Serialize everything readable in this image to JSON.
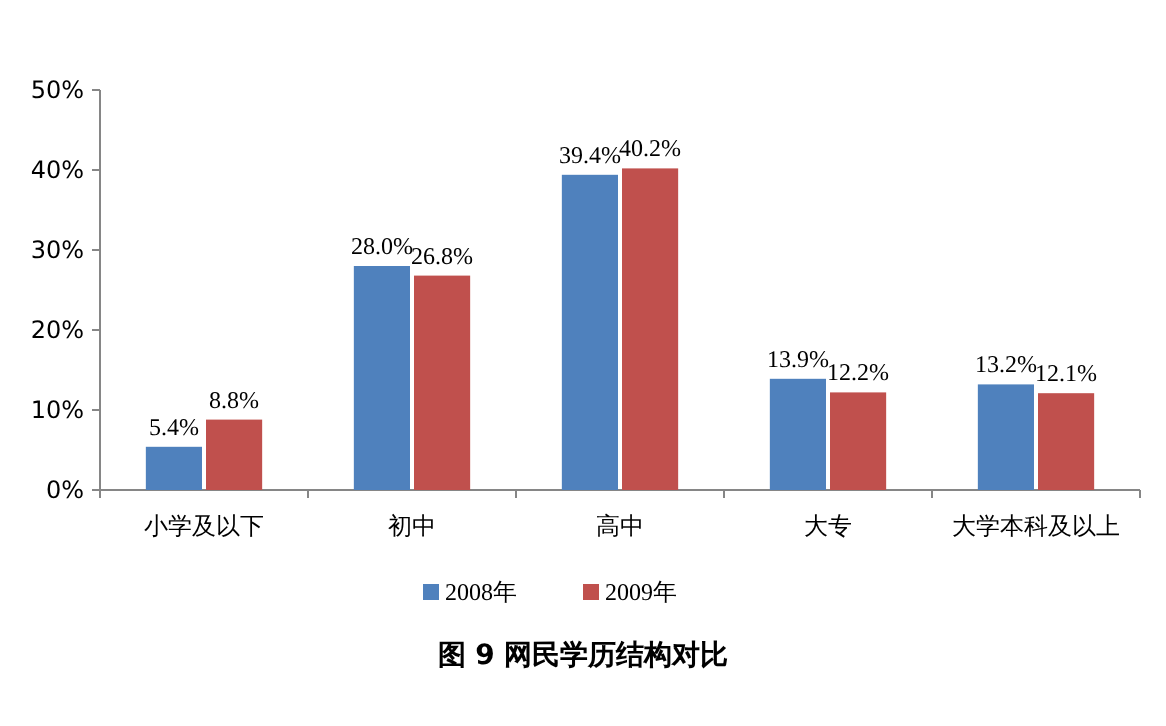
{
  "chart_data": {
    "type": "bar",
    "title": "图 9   网民学历结构对比",
    "categories": [
      "小学及以下",
      "初中",
      "高中",
      "大专",
      "大学本科及以上"
    ],
    "series": [
      {
        "name": "2008年",
        "color": "#4f81bd",
        "values": [
          5.4,
          28.0,
          39.4,
          13.9,
          13.2
        ],
        "value_labels": [
          "5.4%",
          "28.0%",
          "39.4%",
          "13.9%",
          "13.2%"
        ]
      },
      {
        "name": "2009年",
        "color": "#c0504d",
        "values": [
          8.8,
          26.8,
          40.2,
          12.2,
          12.1
        ],
        "value_labels": [
          "8.8%",
          "26.8%",
          "40.2%",
          "12.2%",
          "12.1%"
        ]
      }
    ],
    "ylim": [
      0,
      50
    ],
    "yticks": [
      {
        "value": 0,
        "label": "0%"
      },
      {
        "value": 10,
        "label": "10%"
      },
      {
        "value": 20,
        "label": "20%"
      },
      {
        "value": 30,
        "label": "30%"
      },
      {
        "value": 40,
        "label": "40%"
      },
      {
        "value": 50,
        "label": "50%"
      }
    ],
    "grid": false,
    "legend": "bottom"
  }
}
